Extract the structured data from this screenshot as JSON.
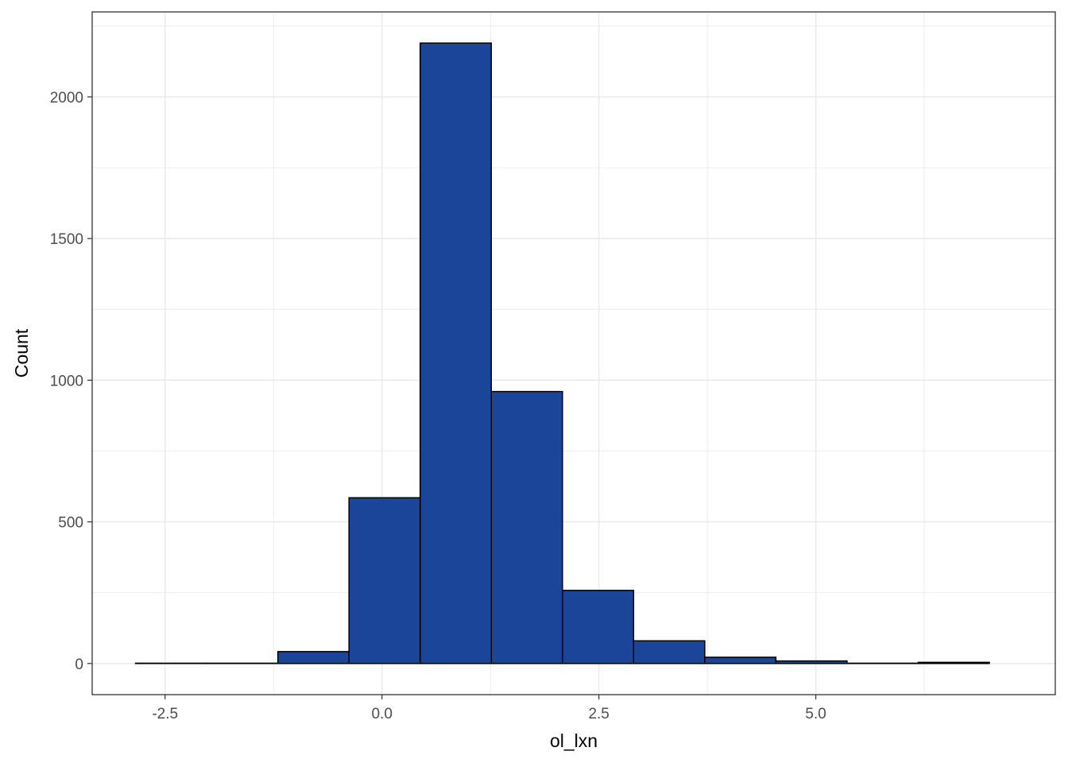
{
  "chart_data": {
    "type": "bar",
    "subtype": "histogram",
    "title": "",
    "xlabel": "ol_lxn",
    "ylabel": "Count",
    "xlim": [
      -3.34,
      7.76
    ],
    "ylim": [
      -110,
      2300
    ],
    "x_ticks": [
      -2.5,
      0.0,
      2.5,
      5.0
    ],
    "x_tick_labels": [
      "-2.5",
      "0.0",
      "2.5",
      "5.0"
    ],
    "y_ticks": [
      0,
      500,
      1000,
      1500,
      2000
    ],
    "y_tick_labels": [
      "0",
      "500",
      "1000",
      "1500",
      "2000"
    ],
    "bins": [
      {
        "x0": -2.84,
        "x1": -2.02,
        "count": 1
      },
      {
        "x0": -2.02,
        "x1": -1.2,
        "count": 1
      },
      {
        "x0": -1.2,
        "x1": -0.38,
        "count": 42
      },
      {
        "x0": -0.38,
        "x1": 0.44,
        "count": 585
      },
      {
        "x0": 0.44,
        "x1": 1.26,
        "count": 2190
      },
      {
        "x0": 1.26,
        "x1": 2.08,
        "count": 960
      },
      {
        "x0": 2.08,
        "x1": 2.9,
        "count": 258
      },
      {
        "x0": 2.9,
        "x1": 3.72,
        "count": 80
      },
      {
        "x0": 3.72,
        "x1": 4.54,
        "count": 22
      },
      {
        "x0": 4.54,
        "x1": 5.36,
        "count": 9
      },
      {
        "x0": 5.36,
        "x1": 6.18,
        "count": 1
      },
      {
        "x0": 6.18,
        "x1": 7.0,
        "count": 4
      }
    ],
    "grid": true,
    "legend": "none",
    "colors": {
      "bar_fill": "#1a4599",
      "bar_outline": "#000000",
      "panel_border": "#333333",
      "grid": "#ebebeb",
      "tick_label": "#4d4d4d"
    }
  }
}
